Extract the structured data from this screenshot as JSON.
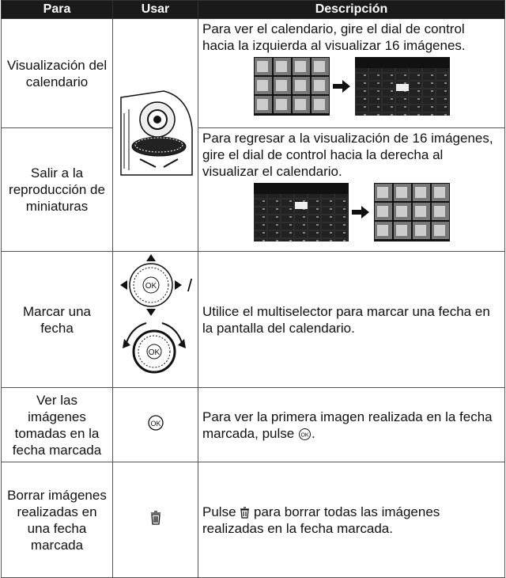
{
  "table": {
    "headers": [
      "Para",
      "Usar",
      "Descripción"
    ],
    "rows": [
      {
        "para": "Visualización del calendario",
        "descripcion": "Para ver el calendario, gire el dial de control hacia la izquierda al visualizar 16 imágenes."
      },
      {
        "para": "Salir a la reproducción de miniaturas",
        "descripcion": "Para regresar a la visualización de 16 imágenes, gire el dial de control hacia la derecha al visualizar el calendario."
      },
      {
        "para": "Marcar una fecha",
        "usar": "/",
        "descripcion": "Utilice el multiselector para marcar una fecha en la pantalla del calendario."
      },
      {
        "para": "Ver las imágenes tomadas en la fecha marcada",
        "descripcion": [
          "Para ver la primera imagen realizada en la fecha marcada, pulse",
          "."
        ]
      },
      {
        "para": "Borrar imágenes realizadas en una fecha marcada",
        "descripcion": [
          "Pulse",
          "para borrar todas las imágenes realizadas en la fecha marcada."
        ]
      }
    ]
  }
}
